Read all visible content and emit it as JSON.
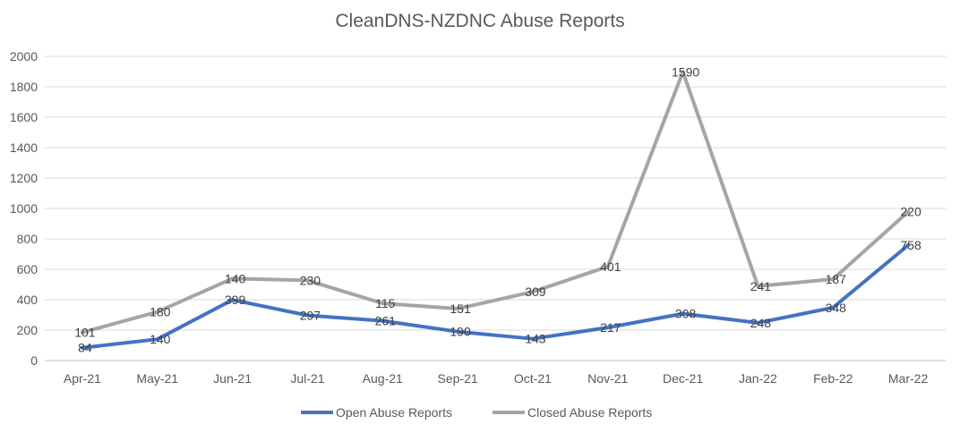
{
  "chart_data": {
    "type": "line",
    "title": "CleanDNS-NZDNC Abuse Reports",
    "xlabel": "",
    "ylabel": "",
    "categories": [
      "Apr-21",
      "May-21",
      "Jun-21",
      "Jul-21",
      "Aug-21",
      "Sep-21",
      "Oct-21",
      "Nov-21",
      "Dec-21",
      "Jan-22",
      "Feb-22",
      "Mar-22"
    ],
    "ylim": [
      0,
      2000
    ],
    "yticks": [
      0,
      200,
      400,
      600,
      800,
      1000,
      1200,
      1400,
      1600,
      1800,
      2000
    ],
    "grid": true,
    "legend_position": "bottom",
    "series": [
      {
        "name": "Open Abuse Reports",
        "color": "#4472C4",
        "values": [
          84,
          140,
          399,
          297,
          261,
          190,
          143,
          217,
          308,
          248,
          348,
          758
        ],
        "labels": [
          "84",
          "140",
          "399",
          "297",
          "261",
          "190",
          "143",
          "217",
          "308",
          "248",
          "348",
          "758"
        ]
      },
      {
        "name": "Closed Abuse Reports",
        "color": "#A5A5A5",
        "values": [
          185,
          320,
          539,
          527,
          376,
          341,
          452,
          618,
          1898,
          489,
          535,
          978
        ],
        "labels": [
          "101",
          "180",
          "140",
          "230",
          "115",
          "151",
          "309",
          "401",
          "1590",
          "241",
          "187",
          "220"
        ]
      }
    ]
  }
}
